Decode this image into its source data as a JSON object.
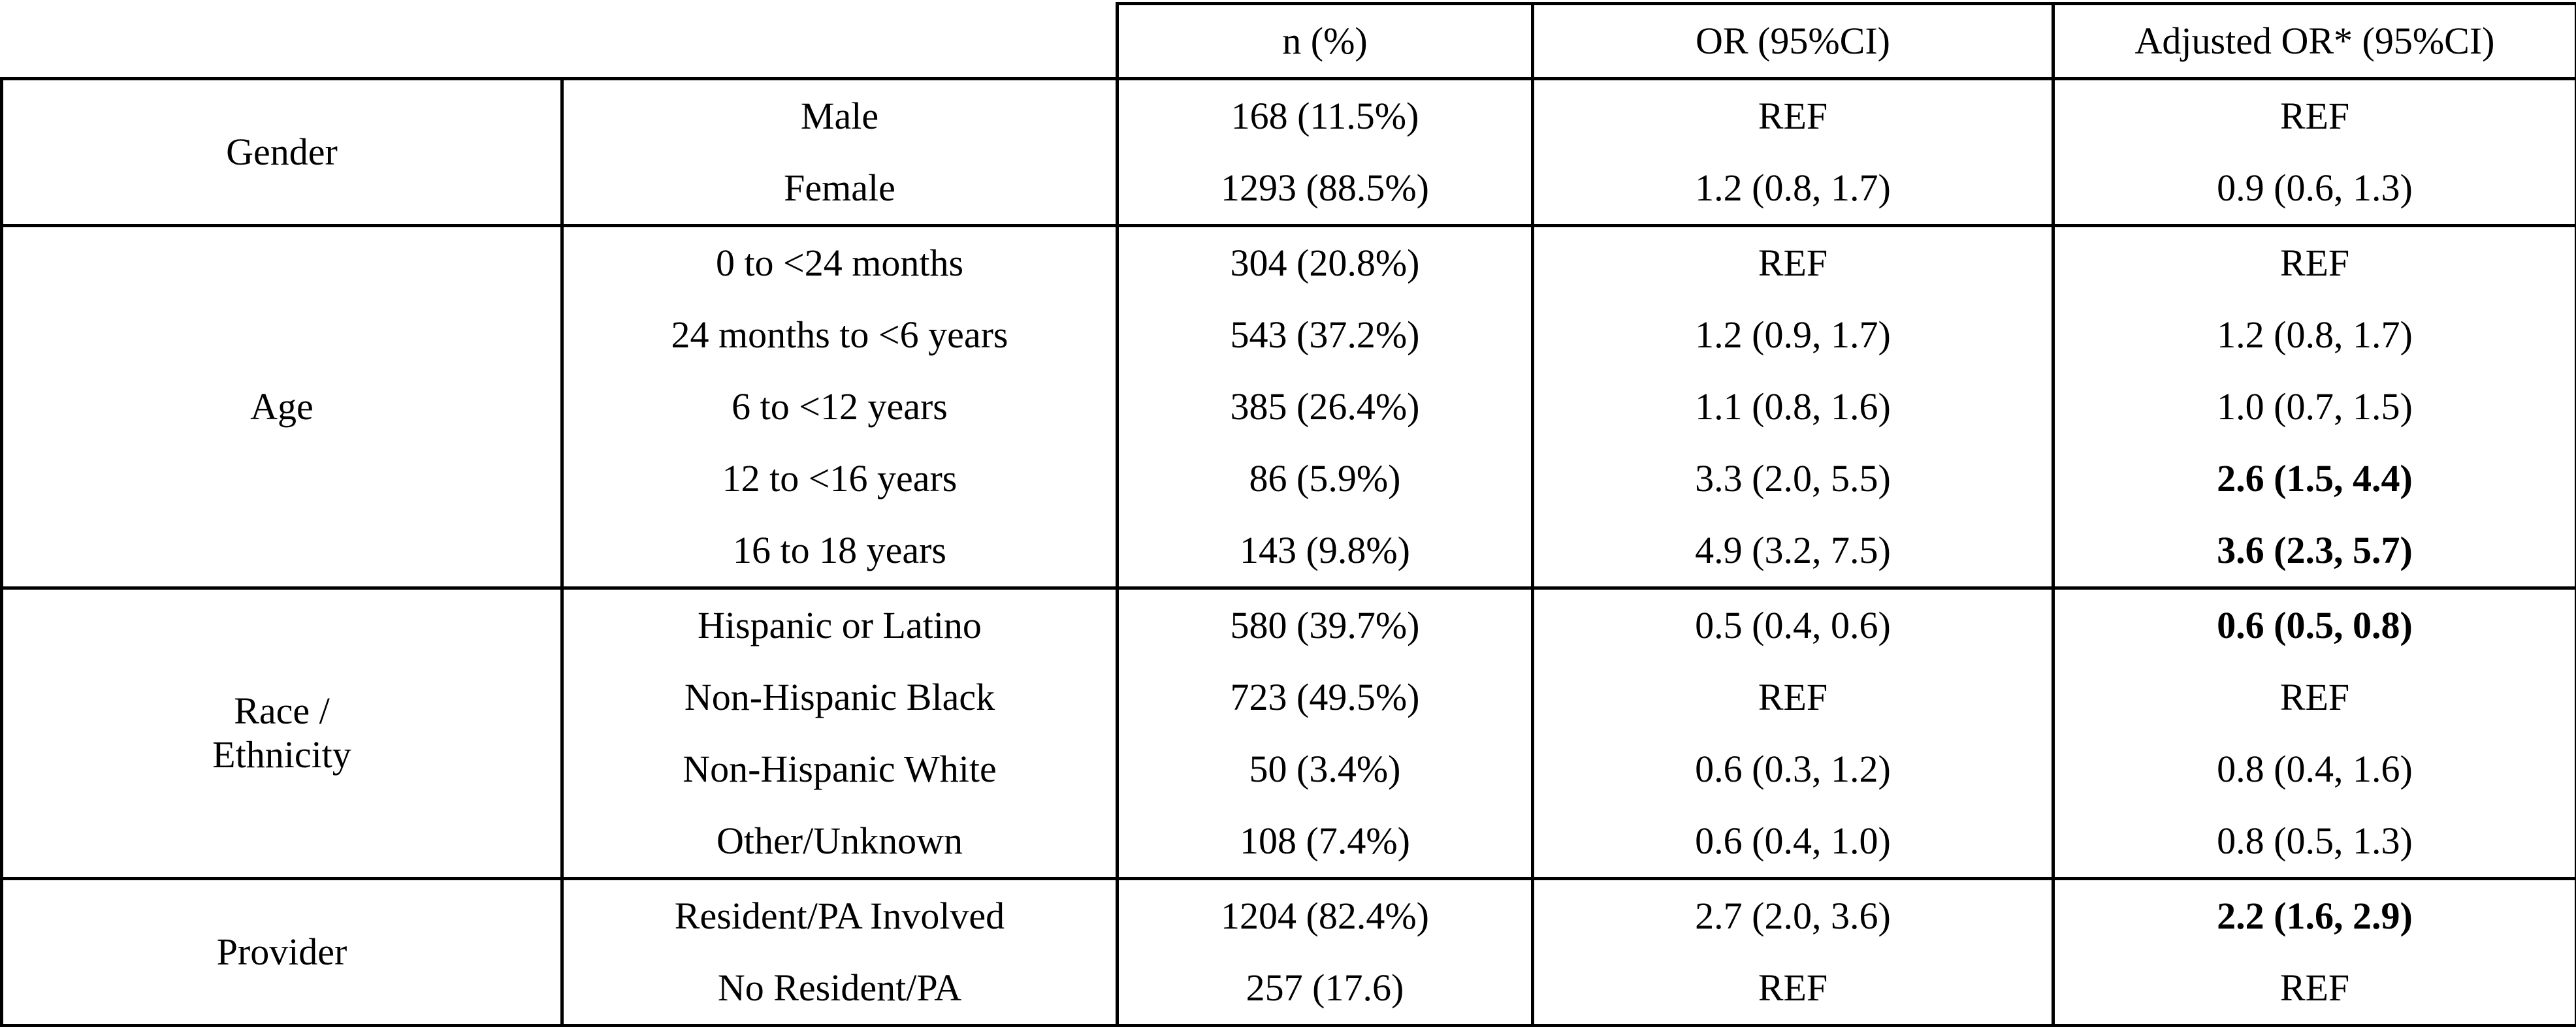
{
  "header": {
    "n_pct": "n (%)",
    "or": "OR (95%CI)",
    "adj_or": "Adjusted OR* (95%CI)"
  },
  "groups": {
    "gender": {
      "label": "Gender",
      "rows": [
        {
          "sub": "Male",
          "n": "168 (11.5%)",
          "or": "REF",
          "adj": "REF"
        },
        {
          "sub": "Female",
          "n": "1293 (88.5%)",
          "or": "1.2 (0.8, 1.7)",
          "adj": "0.9 (0.6, 1.3)"
        }
      ]
    },
    "age": {
      "label": "Age",
      "rows": [
        {
          "sub": "0 to <24 months",
          "n": "304 (20.8%)",
          "or": "REF",
          "adj": "REF"
        },
        {
          "sub": "24 months to <6 years",
          "n": "543 (37.2%)",
          "or": "1.2 (0.9, 1.7)",
          "adj": "1.2 (0.8, 1.7)"
        },
        {
          "sub": "6 to <12 years",
          "n": "385 (26.4%)",
          "or": "1.1 (0.8, 1.6)",
          "adj": "1.0 (0.7, 1.5)"
        },
        {
          "sub": "12 to <16 years",
          "n": "86 (5.9%)",
          "or": "3.3 (2.0, 5.5)",
          "adj": "2.6 (1.5, 4.4)"
        },
        {
          "sub": "16 to 18 years",
          "n": "143 (9.8%)",
          "or": "4.9 (3.2, 7.5)",
          "adj": "3.6 (2.3, 5.7)"
        }
      ]
    },
    "race": {
      "label_line1": "Race /",
      "label_line2": "Ethnicity",
      "rows": [
        {
          "sub": "Hispanic or Latino",
          "n": "580 (39.7%)",
          "or": "0.5 (0.4, 0.6)",
          "adj": "0.6 (0.5, 0.8)"
        },
        {
          "sub": "Non-Hispanic Black",
          "n": "723 (49.5%)",
          "or": "REF",
          "adj": "REF"
        },
        {
          "sub": "Non-Hispanic White",
          "n": "50 (3.4%)",
          "or": "0.6 (0.3, 1.2)",
          "adj": "0.8 (0.4, 1.6)"
        },
        {
          "sub": "Other/Unknown",
          "n": "108 (7.4%)",
          "or": "0.6 (0.4, 1.0)",
          "adj": "0.8 (0.5, 1.3)"
        }
      ]
    },
    "provider": {
      "label": "Provider",
      "rows": [
        {
          "sub": "Resident/PA Involved",
          "n": "1204 (82.4%)",
          "or": "2.7 (2.0, 3.6)",
          "adj": "2.2 (1.6, 2.9)"
        },
        {
          "sub": "No Resident/PA",
          "n": "257 (17.6)",
          "or": "REF",
          "adj": "REF"
        }
      ]
    }
  }
}
